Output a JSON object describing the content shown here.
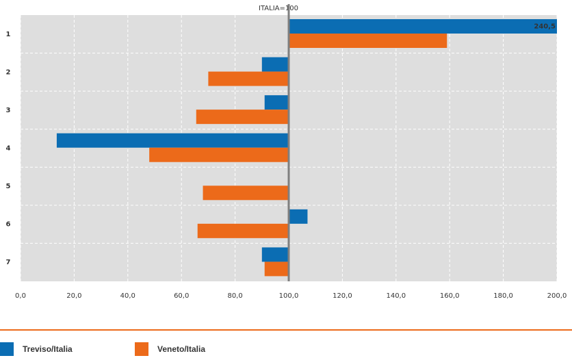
{
  "chart_data": {
    "type": "hbar",
    "annotation": "ITALIA=100",
    "baseline": 100,
    "categories": [
      "1",
      "2",
      "3",
      "4",
      "5",
      "6",
      "7"
    ],
    "series": [
      {
        "name": "Treviso/Italia",
        "color": "#0b6db3",
        "values": [
          240.5,
          90,
          91,
          13.5,
          null,
          107,
          90
        ],
        "value_labels": [
          "240,5",
          null,
          null,
          null,
          null,
          null,
          null
        ]
      },
      {
        "name": "Veneto/Italia",
        "color": "#ec6a1a",
        "values": [
          159,
          70,
          65.5,
          48,
          68,
          66,
          91
        ]
      }
    ],
    "xlim": [
      0,
      200
    ],
    "xticks": [
      {
        "value": 0,
        "label": "0,0"
      },
      {
        "value": 20,
        "label": "20,0"
      },
      {
        "value": 40,
        "label": "40,0"
      },
      {
        "value": 60,
        "label": "60,0"
      },
      {
        "value": 80,
        "label": "80,0"
      },
      {
        "value": 100,
        "label": "100,0"
      },
      {
        "value": 120,
        "label": "120,0"
      },
      {
        "value": 140,
        "label": "140,0"
      },
      {
        "value": 160,
        "label": "160,0"
      },
      {
        "value": 180,
        "label": "180,0"
      },
      {
        "value": 200,
        "label": "200,0"
      }
    ],
    "grid": true
  }
}
